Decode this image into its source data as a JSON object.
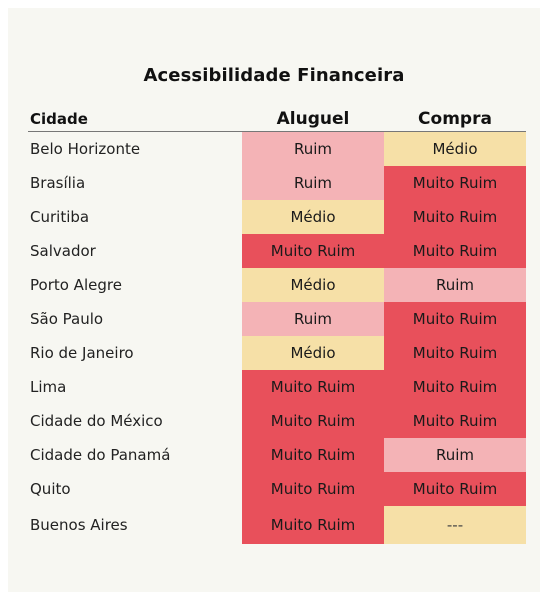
{
  "title": "Acessibilidade Financeira",
  "headers": {
    "city": "Cidade",
    "rent": "Aluguel",
    "buy": "Compra"
  },
  "colors": {
    "Muito Ruim": "#e8505b",
    "Ruim": "#f4b3b6",
    "Médio": "#f6e0a7",
    "---": "#f6e0a7"
  },
  "rows": [
    {
      "city": "Belo Horizonte",
      "rent": "Ruim",
      "buy": "Médio"
    },
    {
      "city": "Brasília",
      "rent": "Ruim",
      "buy": "Muito Ruim"
    },
    {
      "city": "Curitiba",
      "rent": "Médio",
      "buy": "Muito Ruim"
    },
    {
      "city": "Salvador",
      "rent": "Muito Ruim",
      "buy": "Muito Ruim"
    },
    {
      "city": "Porto Alegre",
      "rent": "Médio",
      "buy": "Ruim"
    },
    {
      "city": "São Paulo",
      "rent": "Ruim",
      "buy": "Muito Ruim"
    },
    {
      "city": "Rio de Janeiro",
      "rent": "Médio",
      "buy": "Muito Ruim"
    },
    {
      "city": "Lima",
      "rent": "Muito Ruim",
      "buy": "Muito Ruim"
    },
    {
      "city": "Cidade do México",
      "rent": "Muito Ruim",
      "buy": "Muito Ruim"
    },
    {
      "city": "Cidade do Panamá",
      "rent": "Muito Ruim",
      "buy": "Ruim"
    },
    {
      "city": "Quito",
      "rent": "Muito Ruim",
      "buy": "Muito Ruim"
    },
    {
      "city": "Buenos Aires",
      "rent": "Muito Ruim",
      "buy": "---"
    }
  ]
}
